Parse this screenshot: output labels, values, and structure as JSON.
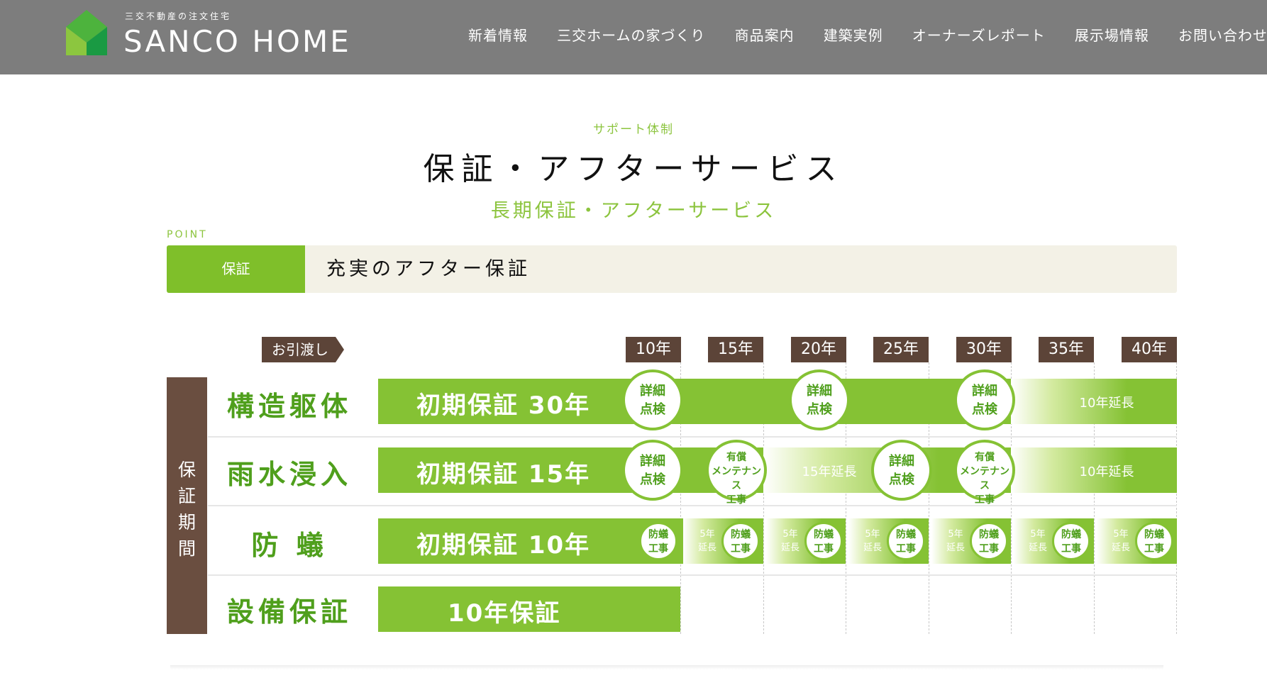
{
  "header": {
    "logo_tagline": "三交不動産の注文住宅",
    "logo_name": "SANCO HOME",
    "nav": [
      "新着情報",
      "三交ホームの家づくり",
      "商品案内",
      "建築実例",
      "オーナーズレポート",
      "展示場情報",
      "お問い合わせ"
    ]
  },
  "section": {
    "eyebrow": "サポート体制",
    "title": "保証・アフターサービス",
    "subtitle": "長期保証・アフターサービス"
  },
  "point": {
    "label": "POINT",
    "tag": "保証",
    "text": "充実のアフター保証"
  },
  "chart": {
    "handover_label": "お引渡し",
    "years": [
      "10年",
      "15年",
      "20年",
      "25年",
      "30年",
      "35年",
      "40年"
    ],
    "side_label": "保証期間",
    "rows": [
      {
        "label": "構造躯体",
        "bar": "初期保証 30年",
        "events": [
          {
            "year": 10,
            "text": [
              "詳細",
              "点検"
            ]
          },
          {
            "year": 20,
            "text": [
              "詳細",
              "点検"
            ]
          },
          {
            "year": 30,
            "text": [
              "詳細",
              "点検"
            ]
          }
        ],
        "extensions": [
          {
            "text": "10年延長"
          }
        ]
      },
      {
        "label": "雨水浸入",
        "bar": "初期保証 15年",
        "events": [
          {
            "year": 10,
            "text": [
              "詳細",
              "点検"
            ]
          },
          {
            "year": 15,
            "text": [
              "有償",
              "メンテナンス",
              "工事"
            ]
          },
          {
            "year": 25,
            "text": [
              "詳細",
              "点検"
            ]
          },
          {
            "year": 30,
            "text": [
              "有償",
              "メンテナンス",
              "工事"
            ]
          }
        ],
        "extensions": [
          {
            "text": "15年延長"
          },
          {
            "text": "10年延長"
          }
        ]
      },
      {
        "label": "防 蟻",
        "bar": "初期保証 10年",
        "work": [
          "防蟻",
          "工事"
        ],
        "extend": [
          "5年",
          "延長"
        ]
      },
      {
        "label": "設備保証",
        "bar": "10年保証"
      }
    ]
  },
  "colors": {
    "header_bg": "#7d7d7d",
    "accent_green": "#85c234",
    "label_green": "#4f9f1c",
    "brown": "#5c4438",
    "point_bg": "#f3f1e6"
  }
}
